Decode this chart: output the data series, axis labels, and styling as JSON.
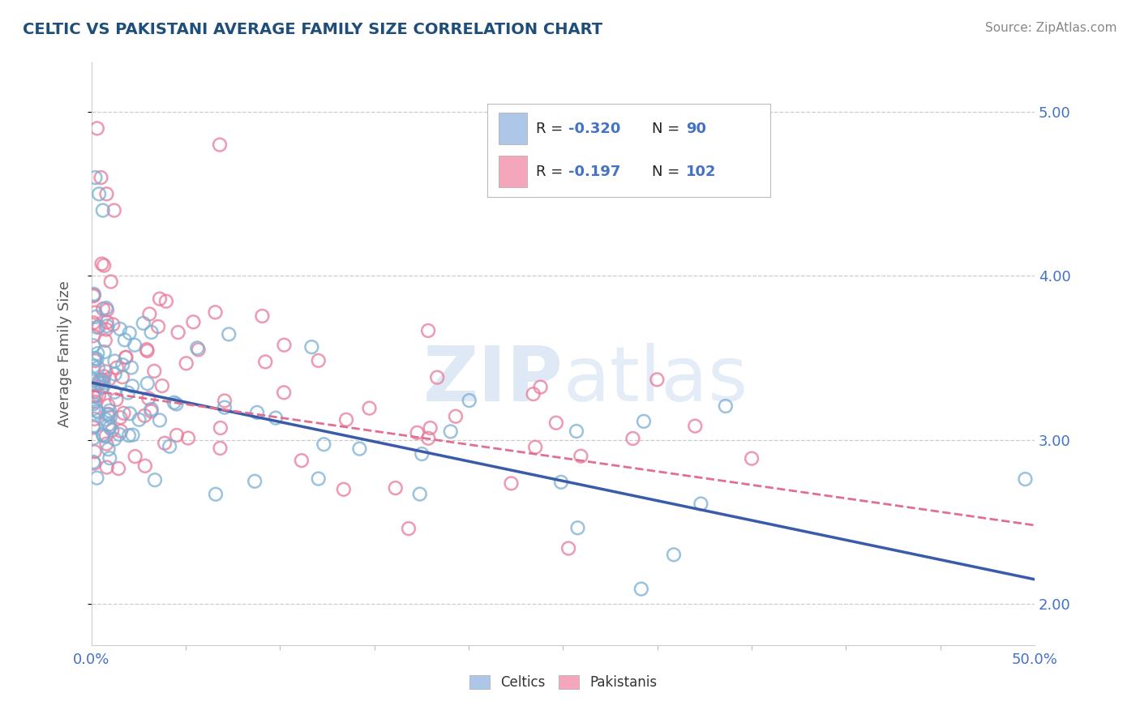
{
  "title": "CELTIC VS PAKISTANI AVERAGE FAMILY SIZE CORRELATION CHART",
  "source_text": "Source: ZipAtlas.com",
  "ylabel": "Average Family Size",
  "xlim": [
    0.0,
    0.5
  ],
  "ylim": [
    1.75,
    5.3
  ],
  "yticks": [
    2.0,
    3.0,
    4.0,
    5.0
  ],
  "xticks": [
    0.0,
    0.5
  ],
  "xticklabels": [
    "0.0%",
    "50.0%"
  ],
  "yticklabels_right": [
    "2.00",
    "3.00",
    "4.00",
    "5.00"
  ],
  "celtics_color": "#aec6e8",
  "pakistanis_color": "#f4a7bb",
  "celtics_edge_color": "#7bafd4",
  "pakistanis_edge_color": "#e8799a",
  "celtics_line_color": "#3a5aaa",
  "pakistanis_line_color": "#e07090",
  "celtics_R": -0.32,
  "celtics_N": 90,
  "pakistanis_R": -0.197,
  "pakistanis_N": 102,
  "legend_label_celtics": "Celtics",
  "legend_label_pakistanis": "Pakistanis",
  "watermark_zip": "ZIP",
  "watermark_atlas": "atlas",
  "title_color": "#1f4e79",
  "axis_label_color": "#595959",
  "tick_color": "#4472c4",
  "legend_text_dark": "#222222",
  "legend_text_blue": "#4472c4",
  "grid_color": "#cccccc",
  "background_color": "#ffffff"
}
